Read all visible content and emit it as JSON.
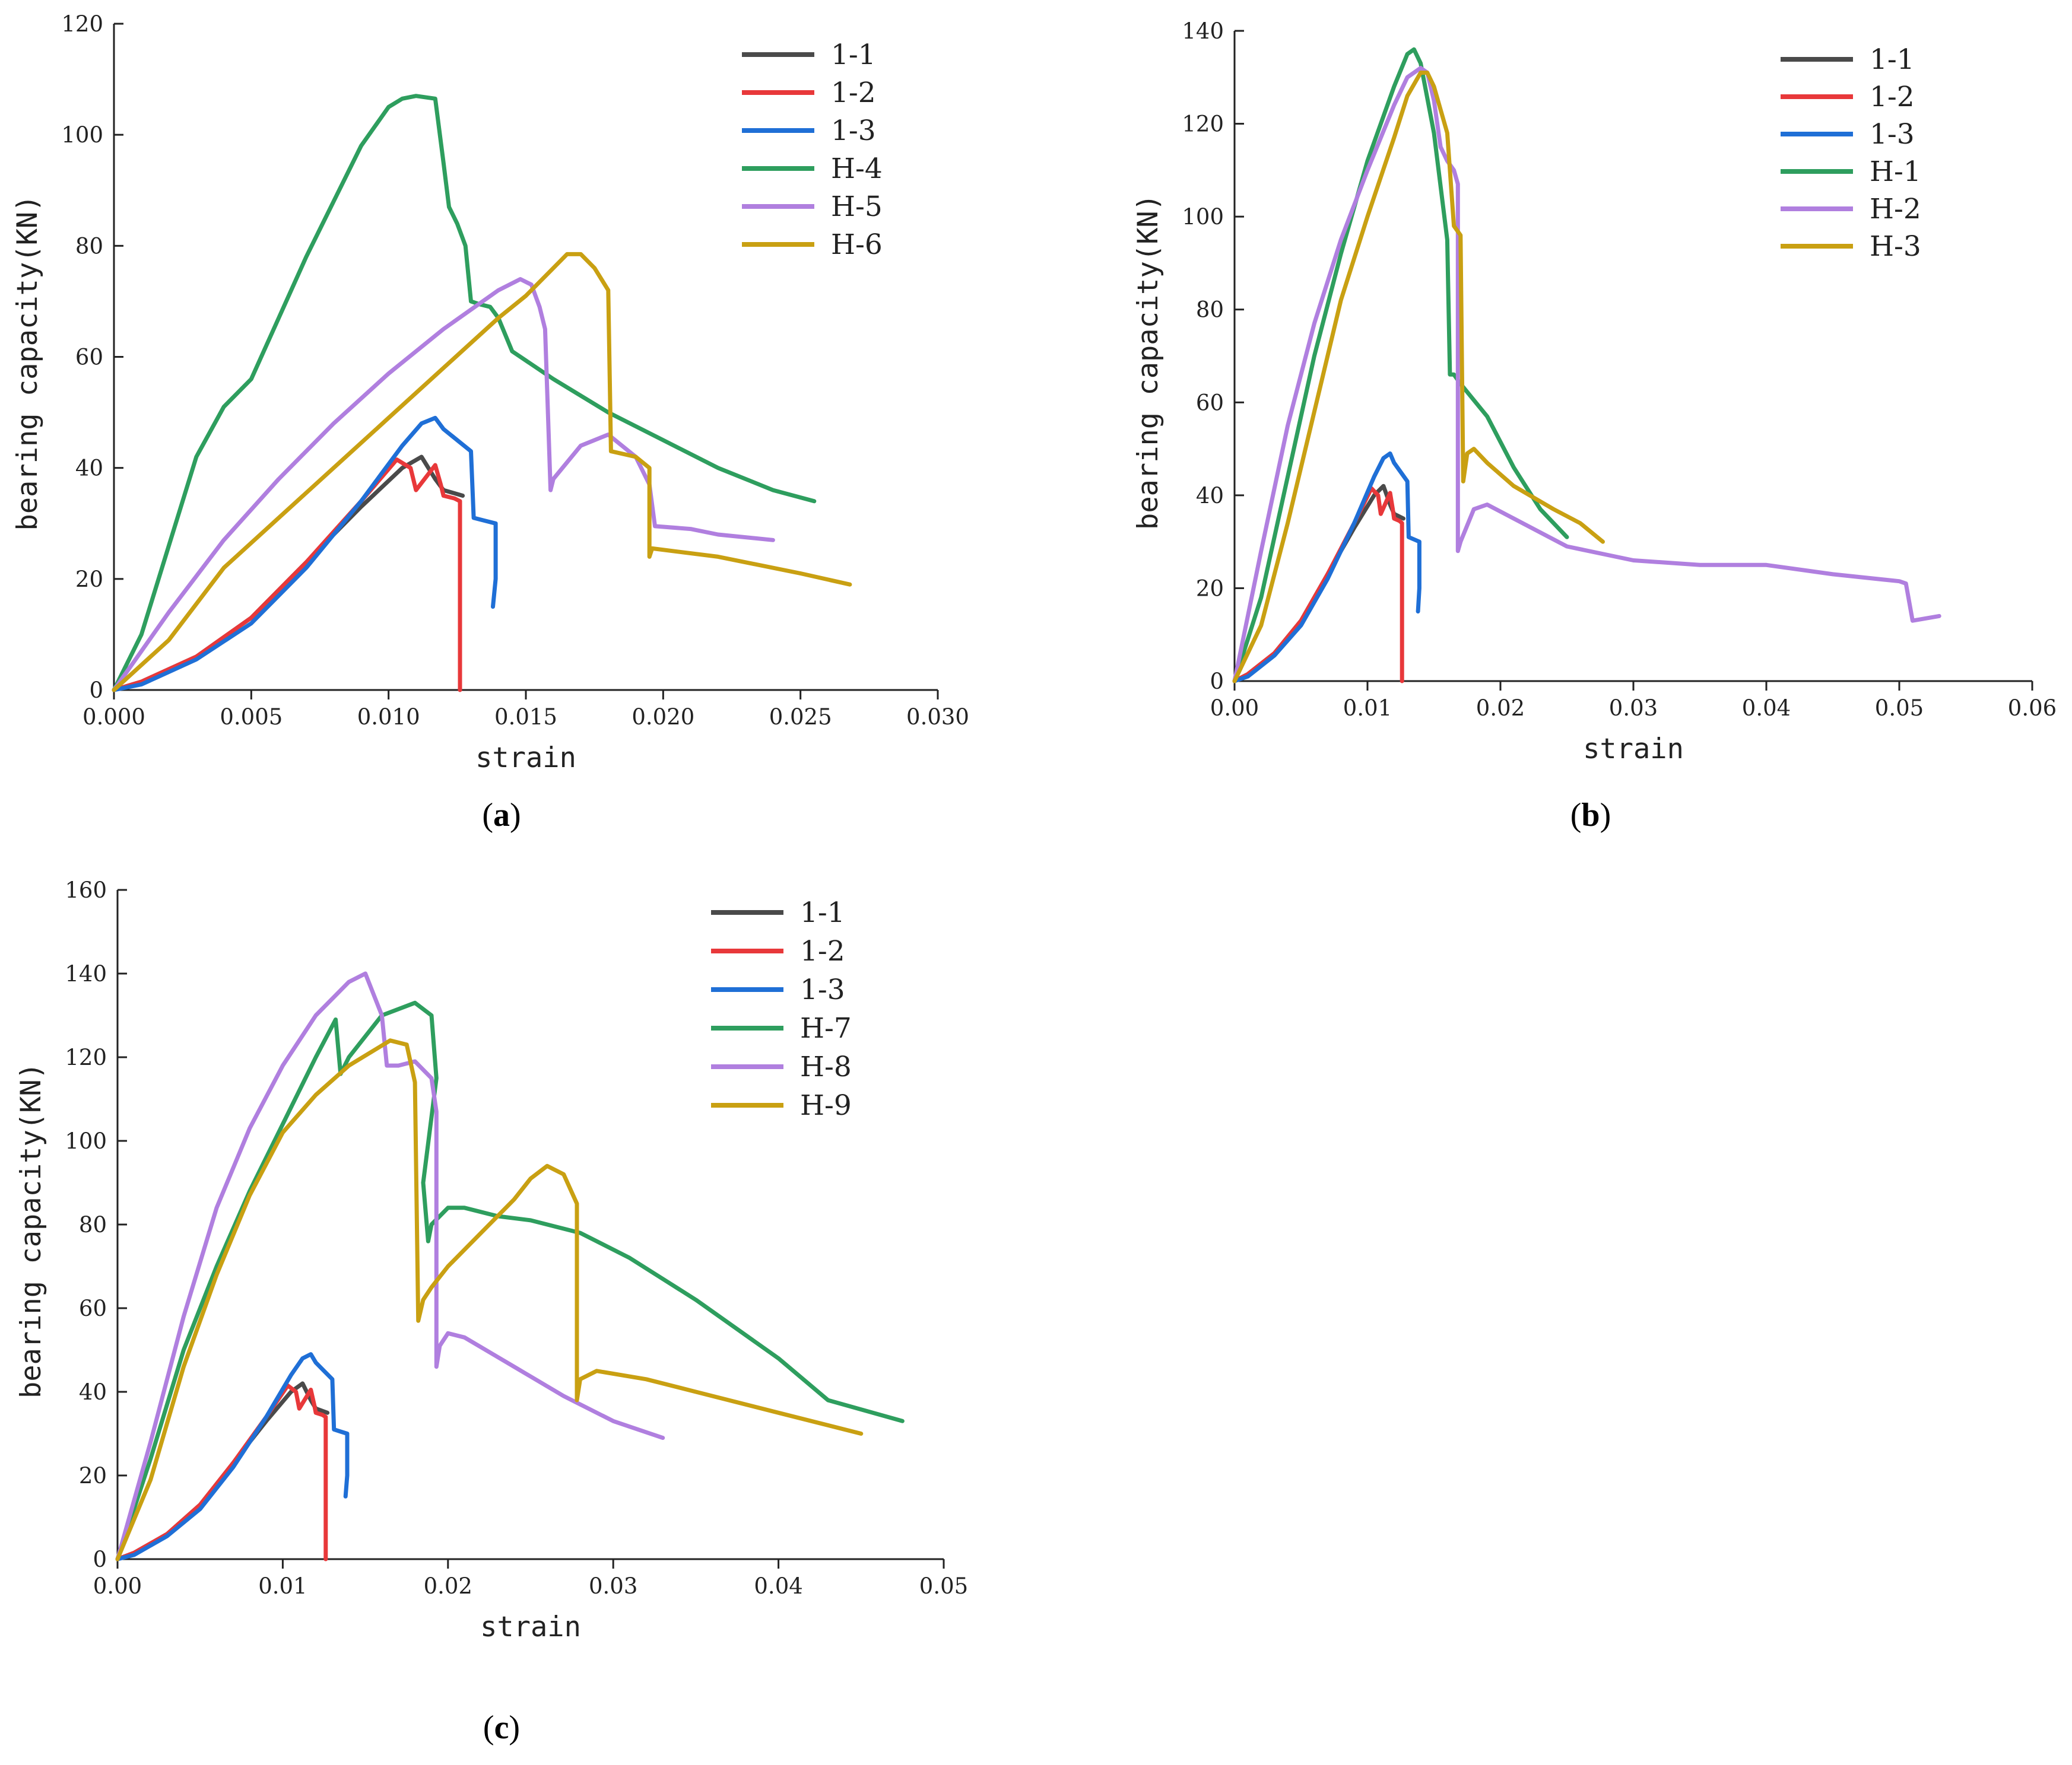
{
  "colors": {
    "1-1": "#4a4a4a",
    "1-2": "#e8383a",
    "1-3": "#1f6fd6",
    "H-1": "#2e9e5e",
    "H-4": "#2e9e5e",
    "H-7": "#2e9e5e",
    "H-2": "#b07fdf",
    "H-5": "#b07fdf",
    "H-8": "#b07fdf",
    "H-3": "#c9a012",
    "H-6": "#c9a012",
    "H-9": "#c9a012"
  },
  "chart_data": [
    {
      "id": "a",
      "type": "line",
      "panel_label": "(a)",
      "panel_letter": "a",
      "xlabel": "strain",
      "ylabel": "bearing capacity(KN)",
      "xlim": [
        0,
        0.03
      ],
      "ylim": [
        0,
        120
      ],
      "xticks": [
        0,
        0.005,
        0.01,
        0.015,
        0.02,
        0.025,
        0.03
      ],
      "xtick_labels": [
        "0.000",
        "0.005",
        "0.010",
        "0.015",
        "0.020",
        "0.025",
        "0.030"
      ],
      "yticks": [
        0,
        20,
        40,
        60,
        80,
        100,
        120
      ],
      "ytick_labels": [
        "0",
        "20",
        "40",
        "60",
        "80",
        "100",
        "120"
      ],
      "legend_position": "top-right",
      "series": [
        {
          "name": "1-1",
          "x": [
            0,
            0.001,
            0.003,
            0.005,
            0.007,
            0.009,
            0.0105,
            0.0112,
            0.0117,
            0.012,
            0.0127
          ],
          "y": [
            0,
            1.5,
            6,
            13,
            23,
            33,
            40,
            42,
            38,
            36,
            35
          ]
        },
        {
          "name": "1-2",
          "x": [
            0,
            0.001,
            0.003,
            0.005,
            0.007,
            0.009,
            0.0103,
            0.0108,
            0.011,
            0.0117,
            0.0119,
            0.012,
            0.0124,
            0.0126,
            0.0126
          ],
          "y": [
            0,
            1.5,
            6,
            13,
            23,
            34,
            41.5,
            40,
            36,
            40.5,
            37,
            35,
            34.5,
            34,
            0
          ]
        },
        {
          "name": "1-3",
          "x": [
            0,
            0.001,
            0.003,
            0.005,
            0.007,
            0.009,
            0.0105,
            0.0112,
            0.0117,
            0.012,
            0.0125,
            0.013,
            0.0131,
            0.0135,
            0.0139,
            0.0139,
            0.0138
          ],
          "y": [
            0,
            1,
            5.5,
            12,
            22,
            34,
            44,
            48,
            49,
            47,
            45,
            43,
            31,
            30.5,
            30,
            20,
            15
          ]
        },
        {
          "name": "H-4",
          "x": [
            0,
            0.001,
            0.002,
            0.003,
            0.004,
            0.005,
            0.006,
            0.007,
            0.008,
            0.009,
            0.01,
            0.0105,
            0.011,
            0.0117,
            0.012,
            0.0122,
            0.0125,
            0.0128,
            0.013,
            0.0133,
            0.0137,
            0.014,
            0.0145,
            0.016,
            0.018,
            0.02,
            0.022,
            0.024,
            0.0255
          ],
          "y": [
            0,
            10,
            26,
            42,
            51,
            56,
            67,
            78,
            88,
            98,
            105,
            106.5,
            107,
            106.5,
            95,
            87,
            84,
            80,
            70,
            69.5,
            69,
            67,
            61,
            56,
            50,
            45,
            40,
            36,
            34
          ]
        },
        {
          "name": "H-5",
          "x": [
            0,
            0.002,
            0.004,
            0.006,
            0.008,
            0.01,
            0.012,
            0.014,
            0.0148,
            0.0152,
            0.0155,
            0.0157,
            0.0159,
            0.016,
            0.017,
            0.018,
            0.019,
            0.0195,
            0.0197,
            0.021,
            0.022,
            0.024
          ],
          "y": [
            0,
            14,
            27,
            38,
            48,
            57,
            65,
            72,
            74,
            73,
            69,
            65,
            36,
            38,
            44,
            46,
            42,
            37,
            29.5,
            29,
            28,
            27
          ]
        },
        {
          "name": "H-6",
          "x": [
            0,
            0.002,
            0.004,
            0.006,
            0.008,
            0.01,
            0.012,
            0.014,
            0.015,
            0.016,
            0.0165,
            0.017,
            0.0175,
            0.018,
            0.0181,
            0.019,
            0.0195,
            0.0195,
            0.0196,
            0.022,
            0.025,
            0.0268
          ],
          "y": [
            0,
            9,
            22,
            31,
            40,
            49,
            58,
            67,
            71,
            76,
            78.5,
            78.5,
            76,
            72,
            43,
            42,
            40,
            24,
            25.5,
            24,
            21,
            19
          ]
        }
      ]
    },
    {
      "id": "b",
      "type": "line",
      "panel_label": "(b)",
      "panel_letter": "b",
      "xlabel": "strain",
      "ylabel": "bearing capacity(KN)",
      "xlim": [
        0,
        0.06
      ],
      "ylim": [
        0,
        140
      ],
      "xticks": [
        0,
        0.01,
        0.02,
        0.03,
        0.04,
        0.05,
        0.06
      ],
      "xtick_labels": [
        "0.00",
        "0.01",
        "0.02",
        "0.03",
        "0.04",
        "0.05",
        "0.06"
      ],
      "yticks": [
        0,
        20,
        40,
        60,
        80,
        100,
        120,
        140
      ],
      "ytick_labels": [
        "0",
        "20",
        "40",
        "60",
        "80",
        "100",
        "120",
        "140"
      ],
      "legend_position": "top-right",
      "series": [
        {
          "name": "1-1",
          "x": [
            0,
            0.001,
            0.003,
            0.005,
            0.007,
            0.009,
            0.0105,
            0.0112,
            0.0117,
            0.012,
            0.0127
          ],
          "y": [
            0,
            1.5,
            6,
            13,
            23,
            33,
            40,
            42,
            38,
            36,
            35
          ]
        },
        {
          "name": "1-2",
          "x": [
            0,
            0.001,
            0.003,
            0.005,
            0.007,
            0.009,
            0.0103,
            0.0108,
            0.011,
            0.0117,
            0.0119,
            0.012,
            0.0124,
            0.0126,
            0.0126
          ],
          "y": [
            0,
            1.5,
            6,
            13,
            23,
            34,
            41.5,
            40,
            36,
            40.5,
            37,
            35,
            34.5,
            34,
            0
          ]
        },
        {
          "name": "1-3",
          "x": [
            0,
            0.001,
            0.003,
            0.005,
            0.007,
            0.009,
            0.0105,
            0.0112,
            0.0117,
            0.012,
            0.0125,
            0.013,
            0.0131,
            0.0135,
            0.0139,
            0.0139,
            0.0138
          ],
          "y": [
            0,
            1,
            5.5,
            12,
            22,
            34,
            44,
            48,
            49,
            47,
            45,
            43,
            31,
            30.5,
            30,
            20,
            15
          ]
        },
        {
          "name": "H-1",
          "x": [
            0,
            0.002,
            0.004,
            0.006,
            0.008,
            0.01,
            0.012,
            0.013,
            0.0135,
            0.014,
            0.015,
            0.016,
            0.0162,
            0.0165,
            0.017,
            0.019,
            0.021,
            0.023,
            0.025
          ],
          "y": [
            0,
            18,
            44,
            70,
            92,
            112,
            128,
            135,
            136,
            133,
            118,
            95,
            66,
            66,
            64,
            57,
            46,
            37,
            31
          ]
        },
        {
          "name": "H-2",
          "x": [
            0,
            0.002,
            0.004,
            0.006,
            0.008,
            0.01,
            0.012,
            0.013,
            0.014,
            0.0145,
            0.015,
            0.0155,
            0.016,
            0.0165,
            0.0168,
            0.0168,
            0.017,
            0.018,
            0.019,
            0.021,
            0.025,
            0.03,
            0.035,
            0.04,
            0.045,
            0.05,
            0.0505,
            0.051,
            0.053
          ],
          "y": [
            0,
            28,
            55,
            77,
            95,
            110,
            124,
            130,
            132,
            131,
            125,
            115,
            112,
            110,
            107,
            28,
            30,
            37,
            38,
            35,
            29,
            26,
            25,
            25,
            23,
            21.5,
            21,
            13,
            14
          ]
        },
        {
          "name": "H-3",
          "x": [
            0,
            0.002,
            0.004,
            0.006,
            0.008,
            0.01,
            0.012,
            0.013,
            0.014,
            0.0145,
            0.015,
            0.016,
            0.0165,
            0.017,
            0.0172,
            0.0175,
            0.018,
            0.019,
            0.021,
            0.024,
            0.026,
            0.0277
          ],
          "y": [
            0,
            12,
            34,
            58,
            82,
            100,
            117,
            126,
            131,
            131,
            128,
            118,
            98,
            96,
            43,
            49,
            50,
            47,
            42,
            37,
            34,
            30
          ]
        }
      ]
    },
    {
      "id": "c",
      "type": "line",
      "panel_label": "(c)",
      "panel_letter": "c",
      "xlabel": "strain",
      "ylabel": "bearing capacity(KN)",
      "xlim": [
        0,
        0.05
      ],
      "ylim": [
        0,
        160
      ],
      "xticks": [
        0,
        0.01,
        0.02,
        0.03,
        0.04,
        0.05
      ],
      "xtick_labels": [
        "0.00",
        "0.01",
        "0.02",
        "0.03",
        "0.04",
        "0.05"
      ],
      "yticks": [
        0,
        20,
        40,
        60,
        80,
        100,
        120,
        140,
        160
      ],
      "ytick_labels": [
        "0",
        "20",
        "40",
        "60",
        "80",
        "100",
        "120",
        "140",
        "160"
      ],
      "legend_position": "top-right",
      "series": [
        {
          "name": "1-1",
          "x": [
            0,
            0.001,
            0.003,
            0.005,
            0.007,
            0.009,
            0.0105,
            0.0112,
            0.0117,
            0.012,
            0.0127
          ],
          "y": [
            0,
            1.5,
            6,
            13,
            23,
            33,
            40,
            42,
            38,
            36,
            35
          ]
        },
        {
          "name": "1-2",
          "x": [
            0,
            0.001,
            0.003,
            0.005,
            0.007,
            0.009,
            0.0103,
            0.0108,
            0.011,
            0.0117,
            0.0119,
            0.012,
            0.0124,
            0.0126,
            0.0126
          ],
          "y": [
            0,
            1.5,
            6,
            13,
            23,
            34,
            41.5,
            40,
            36,
            40.5,
            37,
            35,
            34.5,
            34,
            0
          ]
        },
        {
          "name": "1-3",
          "x": [
            0,
            0.001,
            0.003,
            0.005,
            0.007,
            0.009,
            0.0105,
            0.0112,
            0.0117,
            0.012,
            0.0125,
            0.013,
            0.0131,
            0.0135,
            0.0139,
            0.0139,
            0.0138
          ],
          "y": [
            0,
            1,
            5.5,
            12,
            22,
            34,
            44,
            48,
            49,
            47,
            45,
            43,
            31,
            30.5,
            30,
            20,
            15
          ]
        },
        {
          "name": "H-7",
          "x": [
            0,
            0.002,
            0.004,
            0.006,
            0.008,
            0.01,
            0.012,
            0.0132,
            0.0135,
            0.014,
            0.016,
            0.018,
            0.019,
            0.0193,
            0.0185,
            0.0188,
            0.019,
            0.02,
            0.021,
            0.023,
            0.025,
            0.028,
            0.031,
            0.035,
            0.04,
            0.043,
            0.0475
          ],
          "y": [
            0,
            24,
            50,
            70,
            88,
            104,
            120,
            129,
            116,
            120,
            130,
            133,
            130,
            115,
            90,
            76,
            80,
            84,
            84,
            82,
            81,
            78,
            72,
            62,
            48,
            38,
            33
          ]
        },
        {
          "name": "H-8",
          "x": [
            0,
            0.002,
            0.004,
            0.006,
            0.008,
            0.01,
            0.012,
            0.014,
            0.015,
            0.016,
            0.0163,
            0.017,
            0.018,
            0.019,
            0.0193,
            0.0193,
            0.0195,
            0.02,
            0.021,
            0.024,
            0.027,
            0.03,
            0.033
          ],
          "y": [
            0,
            28,
            58,
            84,
            103,
            118,
            130,
            138,
            140,
            130,
            118,
            118,
            119,
            115,
            107,
            46,
            51,
            54,
            53,
            46,
            39,
            33,
            29
          ]
        },
        {
          "name": "H-9",
          "x": [
            0,
            0.002,
            0.004,
            0.006,
            0.008,
            0.01,
            0.012,
            0.014,
            0.0165,
            0.0175,
            0.018,
            0.0182,
            0.0185,
            0.019,
            0.02,
            0.022,
            0.024,
            0.025,
            0.026,
            0.027,
            0.0278,
            0.0278,
            0.028,
            0.029,
            0.032,
            0.035,
            0.04,
            0.045
          ],
          "y": [
            0,
            19,
            46,
            68,
            87,
            102,
            111,
            118,
            124,
            123,
            114,
            57,
            62,
            65,
            70,
            78,
            86,
            91,
            94,
            92,
            85,
            38,
            43,
            45,
            43,
            40,
            35,
            30
          ]
        }
      ]
    }
  ]
}
